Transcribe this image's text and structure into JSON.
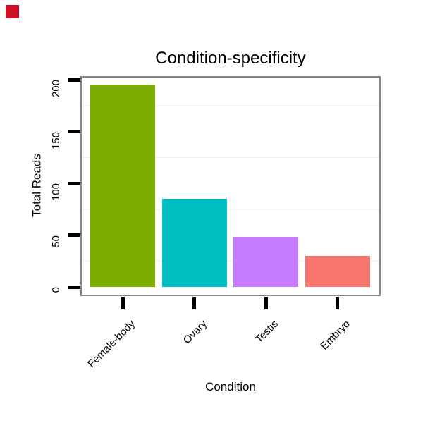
{
  "window": {
    "background": "#ffffff"
  },
  "marker": {
    "label": "red-square-indicator",
    "color": "#CE1126"
  },
  "chart_data": {
    "type": "bar",
    "title": "Condition-specificity",
    "xlabel": "Condition",
    "ylabel": "Total Reads",
    "categories": [
      "Female-body",
      "Ovary",
      "Testis",
      "Embryo"
    ],
    "values": [
      195,
      85,
      48,
      30
    ],
    "bar_colors": [
      "#7CAE00",
      "#00BFC4",
      "#C77CFF",
      "#F8766D"
    ],
    "ylim": [
      0,
      200
    ],
    "yticks": [
      0,
      50,
      100,
      150,
      200
    ],
    "minor_gridlines": [
      25,
      75,
      125,
      175
    ],
    "grid": "horizontal-minor-only",
    "legend": "none",
    "x_tick_label_rotation_deg": -45,
    "y_tick_label_rotation_deg": -90,
    "panel_border_color": "#848484",
    "gridline_color": "#f5f5f5",
    "tick_color": "#000000",
    "text_color": "#000000"
  }
}
